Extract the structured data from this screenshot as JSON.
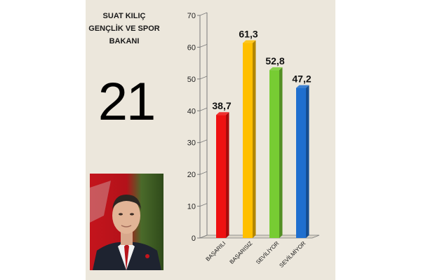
{
  "person": {
    "title_lines": [
      "SUAT KILIÇ",
      "GENÇLİK VE SPOR",
      "BAKANI"
    ],
    "rank": "21"
  },
  "chart_data": {
    "type": "bar",
    "title": "",
    "xlabel": "",
    "ylabel": "",
    "categories": [
      "BAŞARILI",
      "BAŞARISIZ",
      "SEVİLİYOR",
      "SEVİLMİYOR"
    ],
    "values": [
      38.7,
      61.3,
      52.8,
      47.2
    ],
    "value_labels": [
      "38,7",
      "61,3",
      "52,8",
      "47,2"
    ],
    "colors": [
      "#ee1111",
      "#ffbf00",
      "#77cc33",
      "#1f6fcf"
    ],
    "ylim": [
      0,
      70
    ],
    "yticks": [
      0,
      10,
      20,
      30,
      40,
      50,
      60,
      70
    ],
    "grid": false,
    "legend": "none",
    "style": "3d-columns"
  }
}
